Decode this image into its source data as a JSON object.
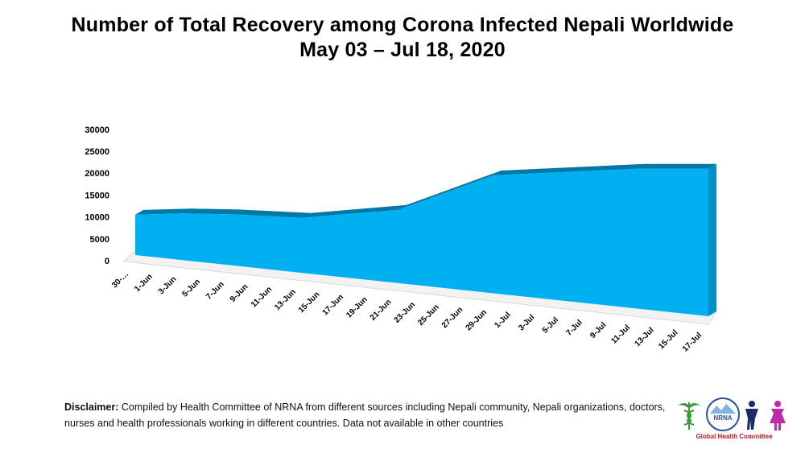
{
  "title": {
    "line1": "Number of Total Recovery among Corona Infected Nepali Worldwide",
    "line2": "May 03 – Jul 18, 2020"
  },
  "chart_data": {
    "type": "area",
    "style": "3d-area",
    "fill_color": "#00b0f0",
    "top_color": "#0078a8",
    "ylim": [
      0,
      30000
    ],
    "y_ticks": [
      0,
      5000,
      10000,
      15000,
      20000,
      25000,
      30000
    ],
    "x_tick_labels": [
      "30-…",
      "1-Jun",
      "3-Jun",
      "5-Jun",
      "7-Jun",
      "9-Jun",
      "11-Jun",
      "13-Jun",
      "15-Jun",
      "17-Jun",
      "19-Jun",
      "21-Jun",
      "23-Jun",
      "25-Jun",
      "27-Jun",
      "29-Jun",
      "1-Jul",
      "3-Jul",
      "5-Jul",
      "7-Jul",
      "9-Jul",
      "11-Jul",
      "13-Jul",
      "15-Jul",
      "17-Jul"
    ],
    "series": [
      {
        "x": [
          "30-…",
          "3-Jun",
          "7-Jun",
          "13-Jun",
          "21-Jun",
          "29-Jun",
          "11-Jul",
          "17-Jul"
        ],
        "values": [
          10500,
          10800,
          10600,
          9800,
          11600,
          19500,
          21000,
          21000
        ]
      }
    ],
    "grid": false,
    "legend": "none"
  },
  "disclaimer": {
    "label": "Disclaimer:",
    "text": " Compiled by Health Committee of NRNA from different sources including Nepali community, Nepali organizations, doctors, nurses and health professionals working in different countries. Data not available in other countries"
  },
  "logos": {
    "nrna_text": "NRNA",
    "caption": "Global Health Committee"
  }
}
